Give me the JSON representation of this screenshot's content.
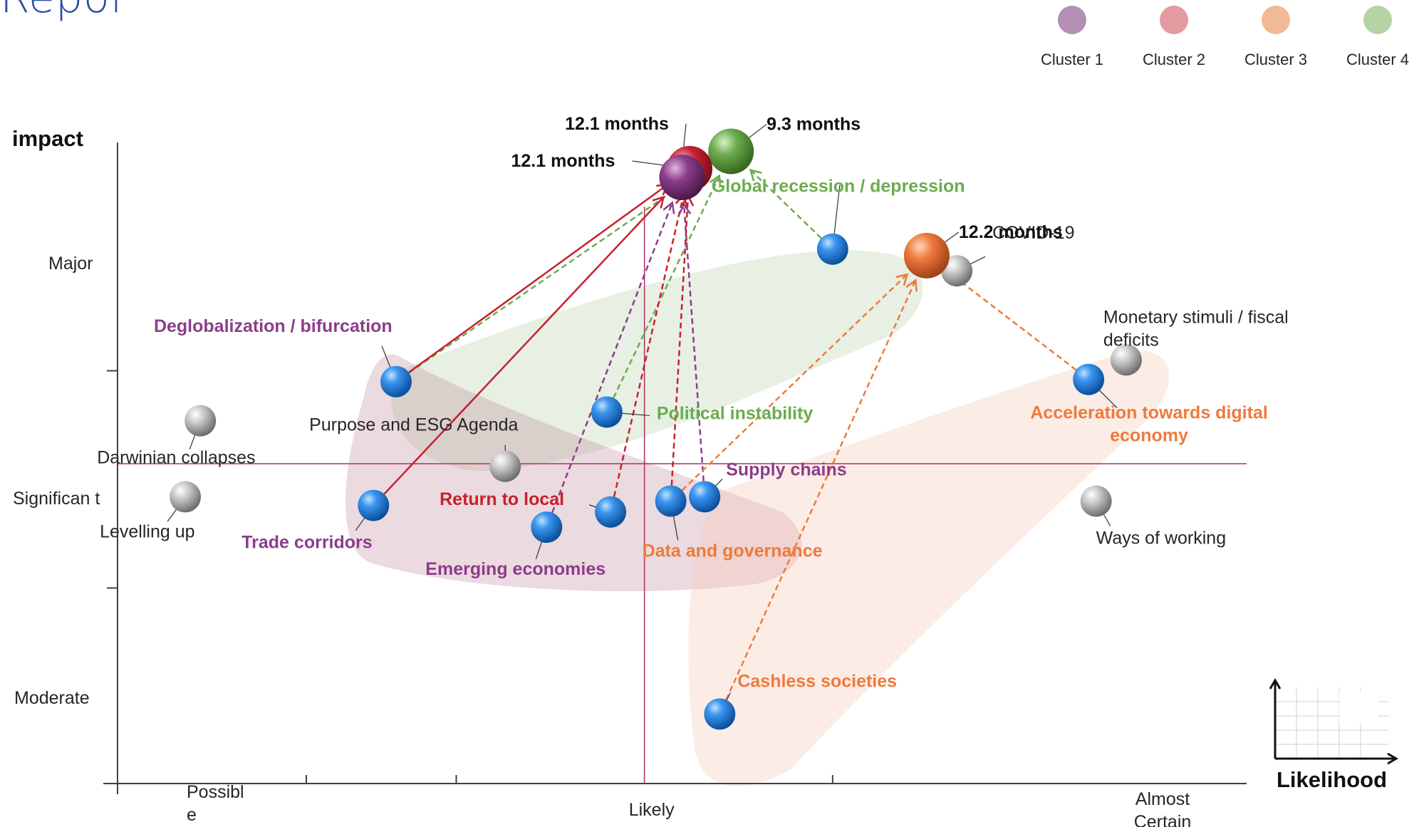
{
  "page": {
    "title_fragment": "Repor"
  },
  "legend": [
    {
      "label": "Cluster 1",
      "color": "#b48fb6"
    },
    {
      "label": "Cluster 2",
      "color": "#e39aa0"
    },
    {
      "label": "Cluster 3",
      "color": "#f2b996"
    },
    {
      "label": "Cluster 4",
      "color": "#b5d3a4"
    }
  ],
  "chart_data": {
    "type": "scatter",
    "title": "",
    "ylabel": "impact",
    "xlabel": "Likelihood",
    "y_ticks": [
      {
        "label": "Major",
        "value": 4
      },
      {
        "label": "Significan t",
        "value": 3
      },
      {
        "label": "Moderate",
        "value": 2
      }
    ],
    "x_ticks": [
      {
        "label": "Possibl e",
        "value": 1
      },
      {
        "label": "Likely",
        "value": 2
      },
      {
        "label": "Almost Certain",
        "value": 3
      }
    ],
    "xlim": [
      0.6,
      3.6
    ],
    "ylim": [
      1.6,
      4.6
    ],
    "grid": false,
    "legend_position": "top-right",
    "colors": {
      "blue": "#1b77d4",
      "grey": "#a6a6a6",
      "purple": "#8c3d8b",
      "red": "#c8202f",
      "orange": "#ee7a3c",
      "green": "#6cac4f",
      "crosshair": "#b03060",
      "axis": "#404040"
    },
    "cluster_nodes": [
      {
        "name": "Cluster 4",
        "label": "9.3 months",
        "x": 2.23,
        "y": 4.51,
        "color": "#6cac4f"
      },
      {
        "name": "Cluster 2",
        "label": "12.1 months",
        "x": 2.12,
        "y": 4.43,
        "color": "#c8202f"
      },
      {
        "name": "Cluster 1",
        "label": "12.1 months",
        "x": 2.1,
        "y": 4.39,
        "color": "#8c3d8b"
      },
      {
        "name": "Cluster 3",
        "label": "12.2 months",
        "x": 2.75,
        "y": 4.03,
        "color": "#ee7a3c"
      }
    ],
    "points": [
      {
        "label": "Global recession / depression",
        "x": 2.5,
        "y": 4.06,
        "kind": "blue",
        "label_color": "#6cac4f",
        "bold": true
      },
      {
        "label": "COVID-19",
        "x": 2.83,
        "y": 3.96,
        "kind": "grey",
        "label_color": "#262626",
        "bold": false
      },
      {
        "label": "Monetary stimuli / fiscal deficits",
        "x": 3.28,
        "y": 3.55,
        "kind": "grey",
        "label_color": "#262626",
        "bold": false
      },
      {
        "label": "Acceleration towards digital economy",
        "x": 3.18,
        "y": 3.46,
        "kind": "blue",
        "label_color": "#ee7a3c",
        "bold": true
      },
      {
        "label": "Deglobalization / bifurcation",
        "x": 1.34,
        "y": 3.45,
        "kind": "blue",
        "label_color": "#8c3d8b",
        "bold": true
      },
      {
        "label": "Political instability",
        "x": 1.9,
        "y": 3.31,
        "kind": "blue",
        "label_color": "#6cac4f",
        "bold": true
      },
      {
        "label": "Darwinian collapses",
        "x": 0.82,
        "y": 3.27,
        "kind": "grey",
        "label_color": "#262626",
        "bold": false
      },
      {
        "label": "Purpose and ESG Agenda",
        "x": 1.63,
        "y": 3.06,
        "kind": "grey",
        "label_color": "#262626",
        "bold": false
      },
      {
        "label": "Supply chains",
        "x": 2.16,
        "y": 2.92,
        "kind": "blue",
        "label_color": "#8c3d8b",
        "bold": true
      },
      {
        "label": "Levelling up",
        "x": 0.78,
        "y": 2.92,
        "kind": "grey",
        "label_color": "#262626",
        "bold": false
      },
      {
        "label": "Data and governance",
        "x": 2.07,
        "y": 2.9,
        "kind": "blue",
        "label_color": "#ee7a3c",
        "bold": true
      },
      {
        "label": "Ways of working",
        "x": 3.2,
        "y": 2.9,
        "kind": "grey",
        "label_color": "#262626",
        "bold": false
      },
      {
        "label": "Return to local",
        "x": 1.91,
        "y": 2.85,
        "kind": "blue",
        "label_color": "#c8202f",
        "bold": true
      },
      {
        "label": "Trade corridors",
        "x": 1.28,
        "y": 2.88,
        "kind": "blue",
        "label_color": "#8c3d8b",
        "bold": true
      },
      {
        "label": "Emerging economies",
        "x": 1.74,
        "y": 2.78,
        "kind": "blue",
        "label_color": "#8c3d8b",
        "bold": true
      },
      {
        "label": "Cashless societies",
        "x": 2.2,
        "y": 1.92,
        "kind": "blue",
        "label_color": "#ee7a3c",
        "bold": true
      }
    ]
  }
}
